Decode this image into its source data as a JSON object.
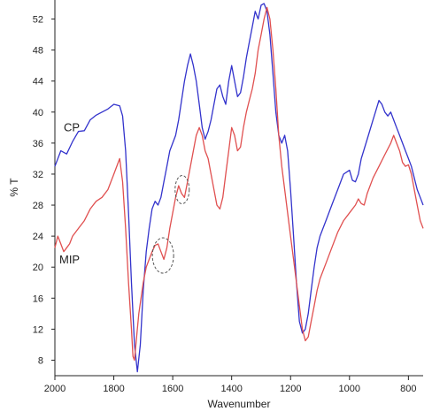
{
  "chart_data": {
    "type": "line",
    "xlabel": "Wavenumber",
    "ylabel": "% T",
    "xlim": [
      2000,
      750
    ],
    "ylim": [
      6,
      54
    ],
    "x_ticks": [
      2000,
      1800,
      1600,
      1400,
      1200,
      1000,
      800
    ],
    "y_ticks": [
      8,
      12,
      16,
      20,
      24,
      28,
      32,
      36,
      40,
      44,
      48,
      52
    ],
    "x_direction": "decreasing",
    "grid": false,
    "legend": "none",
    "series": [
      {
        "name": "CP",
        "color": "#3333cc",
        "points": [
          [
            2000,
            33
          ],
          [
            1980,
            35
          ],
          [
            1960,
            34.6
          ],
          [
            1940,
            36.2
          ],
          [
            1920,
            37.5
          ],
          [
            1900,
            37.6
          ],
          [
            1880,
            39
          ],
          [
            1860,
            39.6
          ],
          [
            1840,
            40
          ],
          [
            1820,
            40.4
          ],
          [
            1800,
            41
          ],
          [
            1780,
            40.8
          ],
          [
            1770,
            39.5
          ],
          [
            1760,
            35
          ],
          [
            1750,
            27
          ],
          [
            1740,
            18
          ],
          [
            1730,
            10
          ],
          [
            1720,
            6.5
          ],
          [
            1710,
            10
          ],
          [
            1700,
            17
          ],
          [
            1690,
            22
          ],
          [
            1680,
            25
          ],
          [
            1670,
            27.5
          ],
          [
            1660,
            28.5
          ],
          [
            1650,
            28
          ],
          [
            1640,
            29
          ],
          [
            1630,
            31
          ],
          [
            1620,
            33
          ],
          [
            1610,
            35
          ],
          [
            1600,
            36
          ],
          [
            1590,
            37
          ],
          [
            1580,
            39
          ],
          [
            1570,
            41.5
          ],
          [
            1560,
            44
          ],
          [
            1550,
            46
          ],
          [
            1540,
            47.5
          ],
          [
            1530,
            46
          ],
          [
            1520,
            44
          ],
          [
            1510,
            41
          ],
          [
            1500,
            38
          ],
          [
            1490,
            36.5
          ],
          [
            1480,
            37.5
          ],
          [
            1470,
            39
          ],
          [
            1460,
            41
          ],
          [
            1450,
            43
          ],
          [
            1440,
            43.5
          ],
          [
            1430,
            42
          ],
          [
            1420,
            41
          ],
          [
            1410,
            44
          ],
          [
            1400,
            46
          ],
          [
            1390,
            44
          ],
          [
            1380,
            42
          ],
          [
            1370,
            42.5
          ],
          [
            1360,
            44.5
          ],
          [
            1350,
            47
          ],
          [
            1340,
            49
          ],
          [
            1330,
            51
          ],
          [
            1320,
            53
          ],
          [
            1310,
            52
          ],
          [
            1300,
            53.8
          ],
          [
            1290,
            54
          ],
          [
            1280,
            53
          ],
          [
            1270,
            50
          ],
          [
            1260,
            45
          ],
          [
            1250,
            40
          ],
          [
            1240,
            37
          ],
          [
            1230,
            36
          ],
          [
            1220,
            37
          ],
          [
            1210,
            35
          ],
          [
            1200,
            30
          ],
          [
            1190,
            24
          ],
          [
            1180,
            18
          ],
          [
            1170,
            13
          ],
          [
            1160,
            11.5
          ],
          [
            1150,
            12
          ],
          [
            1140,
            14
          ],
          [
            1130,
            17
          ],
          [
            1120,
            20
          ],
          [
            1110,
            22.5
          ],
          [
            1100,
            24
          ],
          [
            1080,
            26
          ],
          [
            1060,
            28
          ],
          [
            1040,
            30
          ],
          [
            1020,
            32
          ],
          [
            1000,
            32.5
          ],
          [
            990,
            31.2
          ],
          [
            980,
            31
          ],
          [
            970,
            32
          ],
          [
            960,
            34
          ],
          [
            940,
            36.5
          ],
          [
            920,
            39
          ],
          [
            900,
            41.5
          ],
          [
            890,
            41
          ],
          [
            880,
            40
          ],
          [
            870,
            39.5
          ],
          [
            860,
            40
          ],
          [
            850,
            39
          ],
          [
            840,
            38
          ],
          [
            830,
            37
          ],
          [
            820,
            36
          ],
          [
            810,
            35
          ],
          [
            800,
            34
          ],
          [
            790,
            33
          ],
          [
            780,
            31.5
          ],
          [
            770,
            30
          ],
          [
            760,
            29
          ],
          [
            750,
            28
          ]
        ]
      },
      {
        "name": "MIP",
        "color": "#e05050",
        "points": [
          [
            2000,
            22.5
          ],
          [
            1990,
            24
          ],
          [
            1980,
            23
          ],
          [
            1970,
            22
          ],
          [
            1960,
            22.5
          ],
          [
            1950,
            23
          ],
          [
            1940,
            24
          ],
          [
            1920,
            25
          ],
          [
            1900,
            26
          ],
          [
            1880,
            27.5
          ],
          [
            1860,
            28.5
          ],
          [
            1840,
            29
          ],
          [
            1820,
            30
          ],
          [
            1800,
            32
          ],
          [
            1780,
            34
          ],
          [
            1770,
            31
          ],
          [
            1760,
            25
          ],
          [
            1750,
            18
          ],
          [
            1740,
            12
          ],
          [
            1735,
            8.5
          ],
          [
            1730,
            8
          ],
          [
            1725,
            10
          ],
          [
            1715,
            14
          ],
          [
            1700,
            18
          ],
          [
            1690,
            20
          ],
          [
            1680,
            21
          ],
          [
            1670,
            22
          ],
          [
            1660,
            22.8
          ],
          [
            1650,
            23
          ],
          [
            1640,
            22
          ],
          [
            1630,
            21
          ],
          [
            1620,
            22.5
          ],
          [
            1610,
            25
          ],
          [
            1600,
            27
          ],
          [
            1590,
            29
          ],
          [
            1580,
            30.5
          ],
          [
            1570,
            29.5
          ],
          [
            1560,
            29
          ],
          [
            1550,
            31
          ],
          [
            1540,
            33
          ],
          [
            1530,
            35
          ],
          [
            1520,
            37
          ],
          [
            1510,
            38
          ],
          [
            1500,
            37
          ],
          [
            1490,
            35
          ],
          [
            1480,
            34
          ],
          [
            1470,
            32
          ],
          [
            1460,
            30
          ],
          [
            1450,
            28
          ],
          [
            1440,
            27.5
          ],
          [
            1430,
            29
          ],
          [
            1420,
            32
          ],
          [
            1410,
            35
          ],
          [
            1400,
            38
          ],
          [
            1390,
            37
          ],
          [
            1380,
            35
          ],
          [
            1370,
            35.5
          ],
          [
            1360,
            38
          ],
          [
            1350,
            40
          ],
          [
            1340,
            41.5
          ],
          [
            1330,
            43
          ],
          [
            1320,
            45
          ],
          [
            1310,
            48
          ],
          [
            1300,
            50
          ],
          [
            1290,
            52
          ],
          [
            1280,
            53.5
          ],
          [
            1270,
            52
          ],
          [
            1260,
            48
          ],
          [
            1250,
            43
          ],
          [
            1240,
            37
          ],
          [
            1230,
            33
          ],
          [
            1220,
            30
          ],
          [
            1210,
            27
          ],
          [
            1200,
            24
          ],
          [
            1190,
            21
          ],
          [
            1180,
            18
          ],
          [
            1170,
            15
          ],
          [
            1160,
            12
          ],
          [
            1150,
            10.5
          ],
          [
            1140,
            11
          ],
          [
            1130,
            13
          ],
          [
            1120,
            15
          ],
          [
            1110,
            17
          ],
          [
            1100,
            18.5
          ],
          [
            1080,
            20.5
          ],
          [
            1060,
            22.5
          ],
          [
            1040,
            24.5
          ],
          [
            1020,
            26
          ],
          [
            1000,
            27
          ],
          [
            980,
            28
          ],
          [
            970,
            28.8
          ],
          [
            960,
            28.2
          ],
          [
            950,
            28
          ],
          [
            940,
            29.5
          ],
          [
            920,
            31.5
          ],
          [
            900,
            33
          ],
          [
            880,
            34.5
          ],
          [
            860,
            36
          ],
          [
            850,
            37
          ],
          [
            840,
            36
          ],
          [
            830,
            35
          ],
          [
            820,
            33.5
          ],
          [
            810,
            33
          ],
          [
            800,
            33.2
          ],
          [
            790,
            32
          ],
          [
            780,
            30
          ],
          [
            770,
            28
          ],
          [
            760,
            26
          ],
          [
            750,
            25
          ]
        ]
      }
    ],
    "annotations": [
      {
        "type": "dashed-circle",
        "x": 1633,
        "y": 21.5
      },
      {
        "type": "dashed-circle",
        "x": 1568,
        "y": 30
      }
    ],
    "series_labels": [
      {
        "text": "CP",
        "x": 1970,
        "y": 37.5
      },
      {
        "text": "MIP",
        "x": 1985,
        "y": 20.5
      }
    ]
  }
}
